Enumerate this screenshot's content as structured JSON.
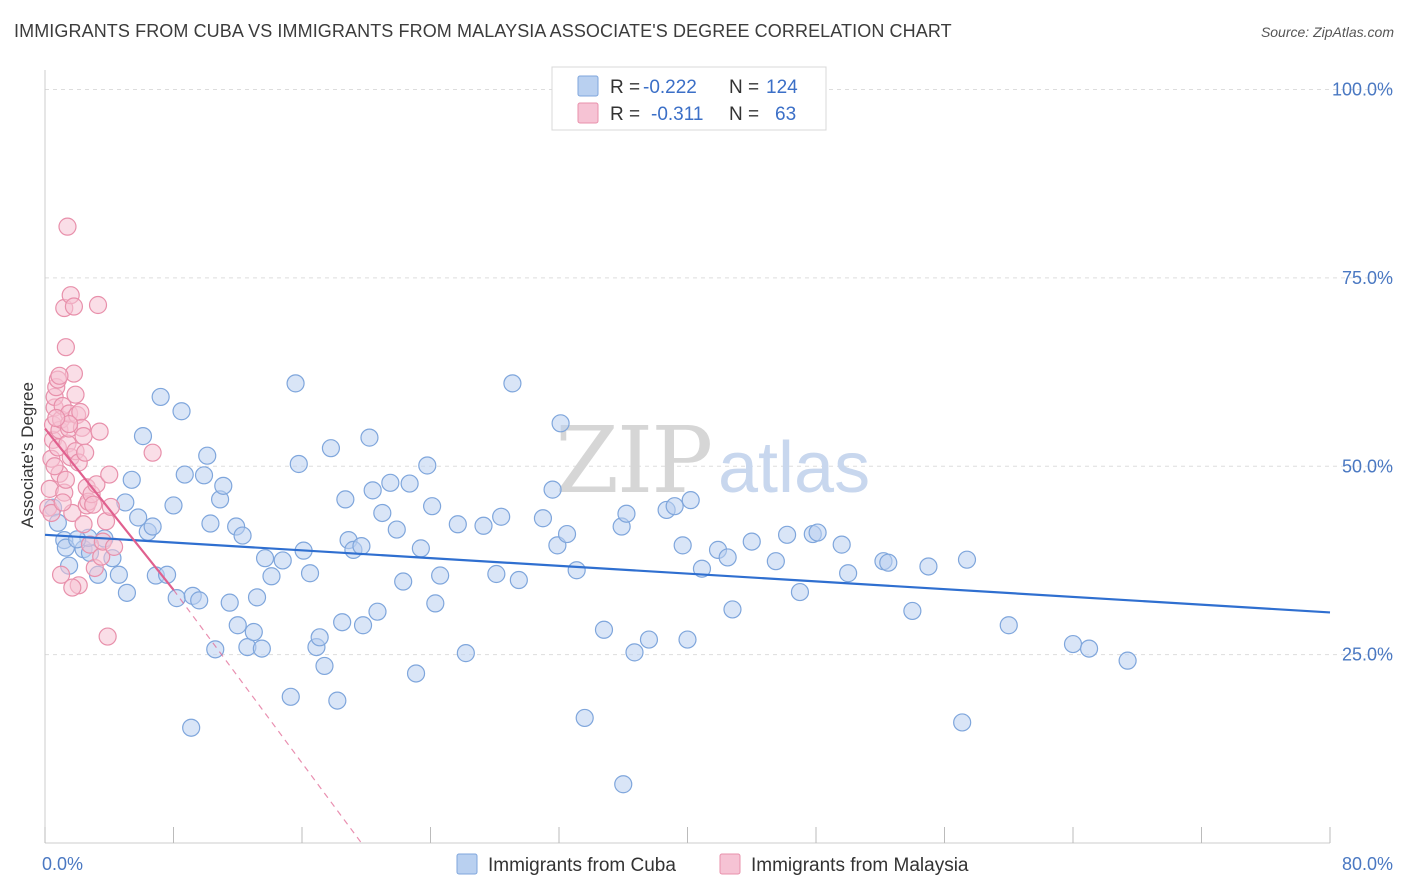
{
  "title": "IMMIGRANTS FROM CUBA VS IMMIGRANTS FROM MALAYSIA ASSOCIATE'S DEGREE CORRELATION CHART",
  "source": "Source: ZipAtlas.com",
  "watermark": {
    "zip": "ZIP",
    "atlas": "atlas"
  },
  "chart_data": {
    "type": "scatter",
    "title": "IMMIGRANTS FROM CUBA VS IMMIGRANTS FROM MALAYSIA ASSOCIATE'S DEGREE CORRELATION CHART",
    "ylabel": "Associate's Degree",
    "xlabel": "",
    "xlim": [
      0,
      80
    ],
    "ylim": [
      0,
      105
    ],
    "x_tick_labels": [
      "0.0%",
      "80.0%"
    ],
    "y_ticks": [
      25,
      50,
      75,
      100
    ],
    "y_tick_labels": [
      "25.0%",
      "50.0%",
      "75.0%",
      "100.0%"
    ],
    "grid": "horizontal dashed",
    "legend_position": "top-center",
    "legend": [
      {
        "r_label": "R =",
        "r_value": "-0.222",
        "n_label": "N =",
        "n_value": "124"
      },
      {
        "r_label": "R =",
        "r_value": "-0.311",
        "n_label": "N =",
        "n_value": "63"
      }
    ],
    "series": [
      {
        "name": "Immigrants from Cuba",
        "color": "#7fa6dc",
        "fill": "#b9d0f0",
        "trend": {
          "x": [
            0,
            80
          ],
          "y": [
            40.9,
            30.6
          ],
          "color": "#2f6fd0",
          "style": "solid"
        },
        "points": [
          [
            0.5,
            44.5
          ],
          [
            0.8,
            42.5
          ],
          [
            1.2,
            40.2
          ],
          [
            1.3,
            39.2
          ],
          [
            1.5,
            36.8
          ],
          [
            2.4,
            39.0
          ],
          [
            2.8,
            38.5
          ],
          [
            2.7,
            40.5
          ],
          [
            3.3,
            35.6
          ],
          [
            3.7,
            40.4
          ],
          [
            4.2,
            37.8
          ],
          [
            4.6,
            35.6
          ],
          [
            5.0,
            45.2
          ],
          [
            5.1,
            33.2
          ],
          [
            5.4,
            48.2
          ],
          [
            5.8,
            43.2
          ],
          [
            6.1,
            54.0
          ],
          [
            6.4,
            41.3
          ],
          [
            6.7,
            42.0
          ],
          [
            6.9,
            35.5
          ],
          [
            7.2,
            59.2
          ],
          [
            7.6,
            35.6
          ],
          [
            8.0,
            44.8
          ],
          [
            8.2,
            32.5
          ],
          [
            8.5,
            57.3
          ],
          [
            8.7,
            48.9
          ],
          [
            9.1,
            15.3
          ],
          [
            9.2,
            32.8
          ],
          [
            9.6,
            32.2
          ],
          [
            10.1,
            51.4
          ],
          [
            10.3,
            42.4
          ],
          [
            10.6,
            25.7
          ],
          [
            10.9,
            45.6
          ],
          [
            11.1,
            47.4
          ],
          [
            11.5,
            31.9
          ],
          [
            11.9,
            42.0
          ],
          [
            12.0,
            28.9
          ],
          [
            12.3,
            40.8
          ],
          [
            12.6,
            26.0
          ],
          [
            13.0,
            28.0
          ],
          [
            13.2,
            32.6
          ],
          [
            13.5,
            25.8
          ],
          [
            13.7,
            37.8
          ],
          [
            14.8,
            37.5
          ],
          [
            15.3,
            19.4
          ],
          [
            15.6,
            61.0
          ],
          [
            15.8,
            50.3
          ],
          [
            16.1,
            38.8
          ],
          [
            16.5,
            35.8
          ],
          [
            16.9,
            26.0
          ],
          [
            17.1,
            27.3
          ],
          [
            17.4,
            23.5
          ],
          [
            17.8,
            52.4
          ],
          [
            18.2,
            18.9
          ],
          [
            18.5,
            29.3
          ],
          [
            18.7,
            45.6
          ],
          [
            18.9,
            40.2
          ],
          [
            19.2,
            38.9
          ],
          [
            19.7,
            39.4
          ],
          [
            19.8,
            28.9
          ],
          [
            20.2,
            53.8
          ],
          [
            20.4,
            46.8
          ],
          [
            20.7,
            30.7
          ],
          [
            21.0,
            43.8
          ],
          [
            21.5,
            47.8
          ],
          [
            22.3,
            34.7
          ],
          [
            22.7,
            47.7
          ],
          [
            23.1,
            22.5
          ],
          [
            23.4,
            39.1
          ],
          [
            23.8,
            50.1
          ],
          [
            24.1,
            44.7
          ],
          [
            24.3,
            31.8
          ],
          [
            24.6,
            35.5
          ],
          [
            25.7,
            42.3
          ],
          [
            26.2,
            25.2
          ],
          [
            27.3,
            42.1
          ],
          [
            28.1,
            35.7
          ],
          [
            28.4,
            43.3
          ],
          [
            29.1,
            61.0
          ],
          [
            29.5,
            34.9
          ],
          [
            31.0,
            43.1
          ],
          [
            31.6,
            46.9
          ],
          [
            31.9,
            39.5
          ],
          [
            32.1,
            55.7
          ],
          [
            32.5,
            41.0
          ],
          [
            33.1,
            36.2
          ],
          [
            33.6,
            16.6
          ],
          [
            34.8,
            28.3
          ],
          [
            35.9,
            42.0
          ],
          [
            36.2,
            43.7
          ],
          [
            36.7,
            25.3
          ],
          [
            37.6,
            27.0
          ],
          [
            38.7,
            44.2
          ],
          [
            39.2,
            44.7
          ],
          [
            39.7,
            39.5
          ],
          [
            40.0,
            27.0
          ],
          [
            40.2,
            45.5
          ],
          [
            40.9,
            36.4
          ],
          [
            41.9,
            38.9
          ],
          [
            42.5,
            37.9
          ],
          [
            42.8,
            31.0
          ],
          [
            44.0,
            40.0
          ],
          [
            45.5,
            37.4
          ],
          [
            46.2,
            40.9
          ],
          [
            47.0,
            33.3
          ],
          [
            47.8,
            41.0
          ],
          [
            48.1,
            41.2
          ],
          [
            49.6,
            39.6
          ],
          [
            50.0,
            35.8
          ],
          [
            52.2,
            37.4
          ],
          [
            52.5,
            37.2
          ],
          [
            54.0,
            30.8
          ],
          [
            55.0,
            36.7
          ],
          [
            57.1,
            16.0
          ],
          [
            57.4,
            37.6
          ],
          [
            60.0,
            28.9
          ],
          [
            64.0,
            26.4
          ],
          [
            65.0,
            25.8
          ],
          [
            67.4,
            24.2
          ],
          [
            36.0,
            7.8
          ],
          [
            2.0,
            40.3
          ],
          [
            9.9,
            48.8
          ],
          [
            14.1,
            35.4
          ],
          [
            21.9,
            41.6
          ]
        ]
      },
      {
        "name": "Immigrants from Malaysia",
        "color": "#e890ab",
        "fill": "#f6c3d4",
        "trend": {
          "x": [
            0,
            8.0
          ],
          "y": [
            55.0,
            33.6
          ],
          "color": "#e0608e",
          "style": "solid",
          "extension": {
            "x": [
              8.0,
              19.7
            ],
            "y": [
              33.6,
              0.0
            ],
            "style": "dashed"
          }
        },
        "points": [
          [
            0.2,
            44.5
          ],
          [
            0.3,
            47.0
          ],
          [
            0.4,
            51.0
          ],
          [
            0.5,
            53.5
          ],
          [
            0.5,
            55.5
          ],
          [
            0.6,
            57.8
          ],
          [
            0.6,
            59.2
          ],
          [
            0.7,
            60.5
          ],
          [
            0.8,
            61.5
          ],
          [
            0.8,
            52.5
          ],
          [
            0.9,
            49.0
          ],
          [
            0.9,
            54.8
          ],
          [
            1.0,
            56.2
          ],
          [
            1.1,
            58.0
          ],
          [
            1.2,
            46.5
          ],
          [
            1.2,
            71.0
          ],
          [
            1.3,
            48.2
          ],
          [
            1.3,
            65.8
          ],
          [
            1.4,
            81.8
          ],
          [
            1.4,
            53.0
          ],
          [
            1.5,
            55.0
          ],
          [
            1.5,
            57.0
          ],
          [
            1.6,
            72.7
          ],
          [
            1.6,
            51.2
          ],
          [
            1.7,
            43.8
          ],
          [
            1.8,
            71.2
          ],
          [
            1.8,
            62.3
          ],
          [
            1.9,
            59.5
          ],
          [
            1.9,
            52.0
          ],
          [
            2.0,
            56.8
          ],
          [
            2.1,
            34.2
          ],
          [
            2.1,
            50.5
          ],
          [
            2.2,
            57.2
          ],
          [
            2.3,
            55.1
          ],
          [
            2.4,
            54.0
          ],
          [
            2.5,
            51.8
          ],
          [
            2.6,
            44.8
          ],
          [
            2.6,
            47.2
          ],
          [
            2.7,
            45.3
          ],
          [
            2.8,
            39.6
          ],
          [
            2.9,
            46.3
          ],
          [
            3.0,
            44.9
          ],
          [
            3.1,
            36.5
          ],
          [
            3.2,
            47.6
          ],
          [
            3.3,
            71.4
          ],
          [
            3.4,
            54.6
          ],
          [
            3.5,
            38.0
          ],
          [
            3.6,
            40.0
          ],
          [
            3.8,
            42.7
          ],
          [
            3.9,
            27.4
          ],
          [
            4.0,
            48.9
          ],
          [
            4.1,
            44.6
          ],
          [
            4.3,
            39.3
          ],
          [
            0.4,
            43.8
          ],
          [
            0.6,
            50.0
          ],
          [
            0.9,
            62.0
          ],
          [
            1.0,
            35.6
          ],
          [
            1.1,
            45.2
          ],
          [
            1.5,
            55.6
          ],
          [
            1.7,
            33.9
          ],
          [
            6.7,
            51.8
          ],
          [
            2.4,
            42.3
          ],
          [
            0.7,
            56.4
          ]
        ]
      }
    ]
  },
  "bottom_legend": [
    "Immigrants from Cuba",
    "Immigrants from Malaysia"
  ]
}
